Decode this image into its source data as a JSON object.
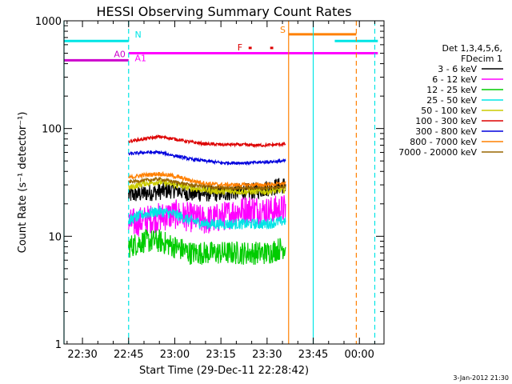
{
  "chart_data": {
    "type": "line",
    "title": "HESSI Observing Summary Count Rates",
    "xlabel": "Start Time (29-Dec-11 22:28:42)",
    "ylabel": "Count Rate (s⁻¹ detector⁻¹)",
    "ylog": true,
    "ylim": [
      1,
      1000
    ],
    "xlim": [
      "22:24",
      "00:08"
    ],
    "x_ticks": [
      "22:30",
      "22:45",
      "23:00",
      "23:15",
      "23:30",
      "23:45",
      "00:00"
    ],
    "y_ticks": [
      "1",
      "10",
      "100",
      "1000"
    ],
    "footer_date": "3-Jan-2012 21:30",
    "legend": {
      "header": [
        "Det 1,3,4,5,6,",
        "FDecim 1"
      ],
      "entries": [
        {
          "label": "3 - 6 keV",
          "color": "#000000"
        },
        {
          "label": "6 - 12 keV",
          "color": "#ff00ff"
        },
        {
          "label": "12 - 25 keV",
          "color": "#00cc00"
        },
        {
          "label": "25 - 50 keV",
          "color": "#00e5e5"
        },
        {
          "label": "50 - 100 keV",
          "color": "#cccc00"
        },
        {
          "label": "100 - 300 keV",
          "color": "#dd0000"
        },
        {
          "label": "300 - 800 keV",
          "color": "#0000dd"
        },
        {
          "label": "800 - 7000 keV",
          "color": "#ff8000"
        },
        {
          "label": "7000 - 20000 keV",
          "color": "#996600"
        }
      ]
    },
    "series": [
      {
        "name": "3 - 6 keV",
        "color": "#000000",
        "x": [
          "22:45",
          "22:50",
          "22:55",
          "23:00",
          "23:05",
          "23:10",
          "23:15",
          "23:20",
          "23:25",
          "23:30",
          "23:36"
        ],
        "y": [
          24,
          25,
          26,
          27,
          25,
          25,
          25,
          26,
          26,
          28,
          30
        ],
        "noise": 0.08
      },
      {
        "name": "6 - 12 keV",
        "color": "#ff00ff",
        "x": [
          "22:45",
          "22:50",
          "22:55",
          "23:00",
          "23:05",
          "23:10",
          "23:15",
          "23:20",
          "23:25",
          "23:30",
          "23:36"
        ],
        "y": [
          13,
          14,
          15,
          16,
          15,
          14,
          15,
          17,
          18,
          17,
          18
        ],
        "noise": 0.14
      },
      {
        "name": "12 - 25 keV",
        "color": "#00cc00",
        "x": [
          "22:45",
          "22:50",
          "22:55",
          "23:00",
          "23:05",
          "23:10",
          "23:15",
          "23:20",
          "23:25",
          "23:30",
          "23:36"
        ],
        "y": [
          8,
          9,
          9,
          8,
          7,
          7,
          7,
          7,
          7,
          7,
          8
        ],
        "noise": 0.11
      },
      {
        "name": "25 - 50 keV",
        "color": "#00e5e5",
        "x": [
          "22:45",
          "22:50",
          "22:55",
          "23:00",
          "23:05",
          "23:10",
          "23:15",
          "23:20",
          "23:25",
          "23:30",
          "23:36"
        ],
        "y": [
          14,
          16,
          17,
          16,
          14,
          13,
          13,
          13,
          13,
          13,
          14
        ],
        "noise": 0.05
      },
      {
        "name": "50 - 100 keV",
        "color": "#cccc00",
        "x": [
          "22:45",
          "22:50",
          "22:55",
          "23:00",
          "23:05",
          "23:10",
          "23:15",
          "23:20",
          "23:25",
          "23:30",
          "23:36"
        ],
        "y": [
          28,
          31,
          32,
          30,
          28,
          27,
          26,
          26,
          26,
          26,
          27
        ],
        "noise": 0.03
      },
      {
        "name": "100 - 300 keV",
        "color": "#dd0000",
        "x": [
          "22:45",
          "22:50",
          "22:55",
          "23:00",
          "23:05",
          "23:10",
          "23:15",
          "23:20",
          "23:25",
          "23:30",
          "23:36"
        ],
        "y": [
          76,
          80,
          84,
          80,
          75,
          72,
          71,
          71,
          70,
          70,
          72
        ],
        "noise": 0.015
      },
      {
        "name": "300 - 800 keV",
        "color": "#0000dd",
        "x": [
          "22:45",
          "22:50",
          "22:55",
          "23:00",
          "23:05",
          "23:10",
          "23:15",
          "23:20",
          "23:25",
          "23:30",
          "23:36"
        ],
        "y": [
          58,
          60,
          60,
          56,
          52,
          50,
          48,
          48,
          48,
          49,
          50
        ],
        "noise": 0.015
      },
      {
        "name": "800 - 7000 keV",
        "color": "#ff8000",
        "x": [
          "22:45",
          "22:50",
          "22:55",
          "23:00",
          "23:05",
          "23:10",
          "23:15",
          "23:20",
          "23:25",
          "23:30",
          "23:36"
        ],
        "y": [
          35,
          37,
          38,
          36,
          33,
          31,
          30,
          30,
          30,
          30,
          31
        ],
        "noise": 0.02
      },
      {
        "name": "7000 - 20000 keV",
        "color": "#996600",
        "x": [
          "22:45",
          "22:50",
          "22:55",
          "23:00",
          "23:05",
          "23:10",
          "23:15",
          "23:20",
          "23:25",
          "23:30",
          "23:36"
        ],
        "y": [
          32,
          33,
          34,
          32,
          30,
          29,
          28,
          28,
          28,
          28,
          29
        ],
        "noise": 0.015
      }
    ],
    "flag_bars": [
      {
        "label": "N",
        "color": "#00e5e5",
        "y": 650,
        "segments": [
          [
            "22:24",
            "22:45"
          ],
          [
            "23:52",
            "00:06"
          ]
        ]
      },
      {
        "label": "A0",
        "color": "#cc00cc",
        "y": 430,
        "segments": [
          [
            "22:24",
            "22:45"
          ]
        ]
      },
      {
        "label": "A1",
        "color": "#ff00ff",
        "y": 500,
        "segments": [
          [
            "22:45",
            "00:06"
          ]
        ]
      },
      {
        "label": "S",
        "color": "#ff8000",
        "y": 750,
        "segments": [
          [
            "23:37",
            "23:59"
          ]
        ]
      },
      {
        "label": "F",
        "color": "#dd0000",
        "y": 560,
        "segments": [
          [
            "23:24",
            "23:25"
          ],
          [
            "23:31",
            "23:32"
          ]
        ]
      }
    ],
    "vertical_lines": [
      {
        "x": "22:24",
        "color": "#00e5e5",
        "style": "solid"
      },
      {
        "x": "22:45",
        "color": "#00e5e5",
        "style": "dashed"
      },
      {
        "x": "23:37",
        "color": "#ff8000",
        "style": "solid"
      },
      {
        "x": "23:45",
        "color": "#00e5e5",
        "style": "solid"
      },
      {
        "x": "23:59",
        "color": "#ff8000",
        "style": "dashed"
      },
      {
        "x": "00:05",
        "color": "#00e5e5",
        "style": "dashed"
      }
    ]
  }
}
